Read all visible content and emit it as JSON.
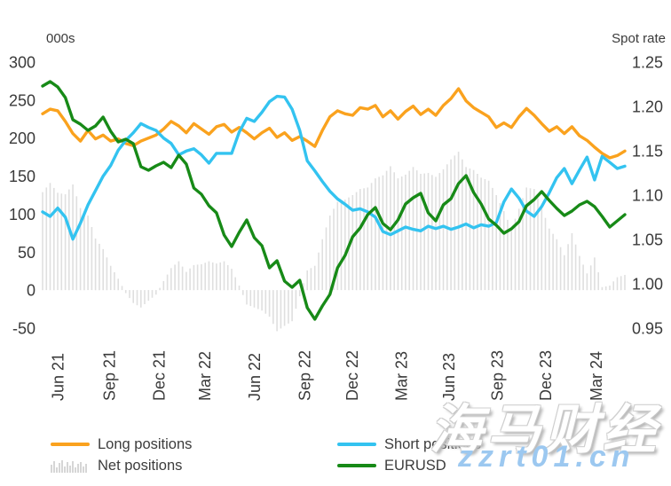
{
  "page": {
    "background": "#ffffff",
    "text_color": "#3a3a3a"
  },
  "legend": {
    "long": "Long positions",
    "net": "Net positions",
    "short": "Short positions",
    "eurusd": "EURUSD"
  },
  "watermark": {
    "line1": "海马财经",
    "line2": "zzrt01.cn",
    "url_color": "#9CC8F0"
  },
  "colors": {
    "long": "#FAA21E",
    "short": "#33C3F0",
    "net": "#DFDFDF",
    "eurusd": "#178A17",
    "axis_text": "#3A3A3A"
  },
  "chart_data": {
    "type": "line+bar",
    "title": "",
    "left_axis": {
      "title": "000s",
      "ticks": [
        300,
        250,
        200,
        150,
        100,
        50,
        0,
        -50
      ],
      "range": [
        -50,
        300
      ]
    },
    "right_axis": {
      "title": "Spot rate",
      "ticks": [
        1.25,
        1.2,
        1.15,
        1.1,
        1.05,
        1.0,
        0.95
      ],
      "range": [
        0.95,
        1.25
      ]
    },
    "grid": false,
    "legend_position": "bottom",
    "x_ticks": [
      {
        "label": "Jun 21",
        "idx": 2
      },
      {
        "label": "Sep 21",
        "idx": 8.8
      },
      {
        "label": "Dec 21",
        "idx": 15.4
      },
      {
        "label": "Mar 22",
        "idx": 21.4
      },
      {
        "label": "Jun 22",
        "idx": 28
      },
      {
        "label": "Sep 22",
        "idx": 34.6
      },
      {
        "label": "Dec 22",
        "idx": 40.9
      },
      {
        "label": "Mar 23",
        "idx": 47.4
      },
      {
        "label": "Jun 23",
        "idx": 53.7
      },
      {
        "label": "Sep 23",
        "idx": 60.1
      },
      {
        "label": "Dec 23",
        "idx": 66.5
      },
      {
        "label": "Mar 24",
        "idx": 73.2
      }
    ],
    "x_description": "weekly CFTC positioning data, two-week steps from May 2021 to May 2024",
    "series": [
      {
        "name": "Long positions",
        "type": "line",
        "axis": "left",
        "color": "#FAA21E",
        "values": [
          232,
          238,
          236,
          222,
          206,
          196,
          210,
          199,
          204,
          196,
          199,
          193,
          190,
          196,
          200,
          204,
          212,
          222,
          216,
          207,
          219,
          212,
          205,
          215,
          218,
          208,
          214,
          207,
          199,
          207,
          213,
          201,
          207,
          197,
          202,
          196,
          189,
          210,
          228,
          236,
          232,
          230,
          240,
          238,
          243,
          228,
          236,
          225,
          235,
          242,
          231,
          238,
          230,
          243,
          252,
          265,
          249,
          240,
          234,
          228,
          214,
          220,
          214,
          228,
          239,
          230,
          219,
          209,
          215,
          206,
          215,
          203,
          197,
          188,
          180,
          174,
          177,
          183
        ]
      },
      {
        "name": "Short positions",
        "type": "line",
        "axis": "left",
        "color": "#33C3F0",
        "values": [
          103,
          97,
          108,
          96,
          67,
          88,
          112,
          131,
          150,
          164,
          184,
          197,
          207,
          219,
          214,
          210,
          200,
          193,
          178,
          183,
          186,
          178,
          167,
          180,
          180,
          180,
          208,
          226,
          222,
          234,
          248,
          255,
          254,
          238,
          210,
          170,
          157,
          143,
          130,
          120,
          113,
          105,
          107,
          103,
          96,
          77,
          73,
          78,
          83,
          80,
          78,
          84,
          81,
          84,
          80,
          83,
          87,
          82,
          86,
          84,
          89,
          116,
          133,
          121,
          104,
          97,
          110,
          128,
          148,
          160,
          140,
          158,
          175,
          145,
          176,
          168,
          160,
          163
        ]
      },
      {
        "name": "Net positions",
        "type": "bar",
        "axis": "left",
        "color": "#DFDFDF",
        "values": [
          129,
          141,
          128,
          126,
          139,
          108,
          98,
          68,
          54,
          32,
          15,
          -4,
          -17,
          -23,
          -14,
          -6,
          12,
          29,
          38,
          24,
          33,
          34,
          38,
          35,
          38,
          28,
          6,
          -19,
          -23,
          -27,
          -35,
          -54,
          -47,
          -41,
          -8,
          26,
          32,
          67,
          98,
          116,
          119,
          125,
          133,
          135,
          147,
          151,
          163,
          147,
          152,
          162,
          153,
          154,
          149,
          159,
          172,
          182,
          162,
          158,
          148,
          144,
          125,
          104,
          81,
          107,
          135,
          133,
          109,
          81,
          67,
          46,
          75,
          45,
          22,
          43,
          4,
          6,
          17,
          20
        ]
      },
      {
        "name": "EURUSD",
        "type": "line",
        "axis": "right",
        "color": "#178A17",
        "values": [
          1.223,
          1.228,
          1.222,
          1.21,
          1.185,
          1.18,
          1.173,
          1.178,
          1.188,
          1.172,
          1.16,
          1.163,
          1.158,
          1.132,
          1.128,
          1.133,
          1.137,
          1.131,
          1.145,
          1.135,
          1.108,
          1.101,
          1.088,
          1.08,
          1.055,
          1.042,
          1.058,
          1.072,
          1.052,
          1.043,
          1.018,
          1.026,
          1.003,
          0.996,
          1.004,
          0.973,
          0.96,
          0.975,
          0.988,
          1.018,
          1.032,
          1.053,
          1.063,
          1.078,
          1.086,
          1.068,
          1.061,
          1.072,
          1.09,
          1.097,
          1.102,
          1.08,
          1.071,
          1.089,
          1.096,
          1.113,
          1.122,
          1.103,
          1.09,
          1.073,
          1.066,
          1.057,
          1.062,
          1.07,
          1.088,
          1.095,
          1.104,
          1.094,
          1.085,
          1.077,
          1.082,
          1.089,
          1.093,
          1.087,
          1.076,
          1.064,
          1.071,
          1.078
        ]
      }
    ]
  }
}
